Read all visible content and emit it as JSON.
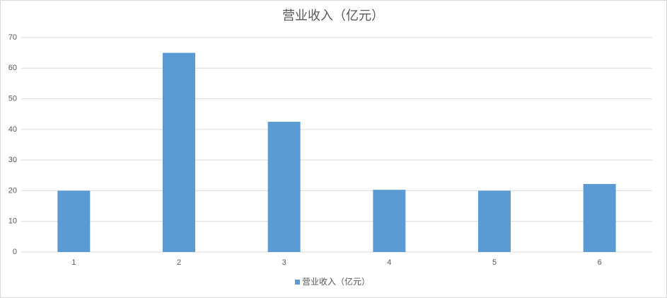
{
  "chart_data": {
    "type": "bar",
    "title": "营业收入（亿元）",
    "categories": [
      "1",
      "2",
      "3",
      "4",
      "5",
      "6"
    ],
    "series": [
      {
        "name": "营业收入（亿元）",
        "color": "#5b9bd5",
        "values": [
          20,
          65,
          42.5,
          20.3,
          20,
          22.2
        ]
      }
    ],
    "ylim": [
      0,
      70
    ],
    "yticks": [
      0,
      10,
      20,
      30,
      40,
      50,
      60,
      70
    ],
    "grid": true,
    "legend": "bottom"
  }
}
